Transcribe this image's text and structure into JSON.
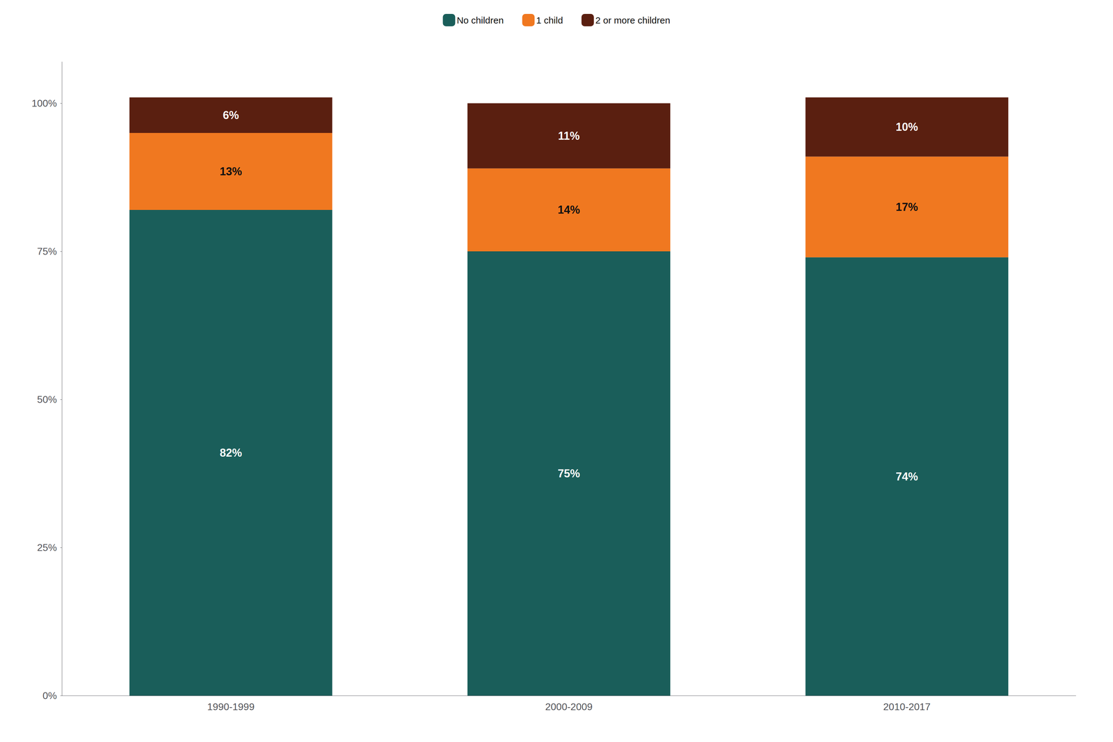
{
  "chart_data": {
    "type": "bar",
    "categories": [
      "1990-1999",
      "2000-2009",
      "2010-2017"
    ],
    "series": [
      {
        "name": "No children",
        "color": "#1a5e5a",
        "values": [
          82,
          75,
          74
        ],
        "value_labels": [
          "82%",
          "75%",
          "74%"
        ]
      },
      {
        "name": "1 child",
        "color": "#f07820",
        "values": [
          13,
          14,
          17
        ],
        "value_labels": [
          "13%",
          "14%",
          "17%"
        ]
      },
      {
        "name": "2 or more children",
        "color": "#5a1f10",
        "values": [
          6,
          11,
          10
        ],
        "value_labels": [
          "6%",
          "11%",
          "10%"
        ]
      }
    ],
    "stacked": true,
    "data_labels": true,
    "ylim": [
      0,
      107
    ],
    "yticks": [
      {
        "value": 0,
        "label": "0%"
      },
      {
        "value": 25,
        "label": "25%"
      },
      {
        "value": 50,
        "label": "50%"
      },
      {
        "value": 75,
        "label": "75%"
      },
      {
        "value": 100,
        "label": "100%"
      }
    ],
    "grid": false,
    "legend": "top"
  }
}
